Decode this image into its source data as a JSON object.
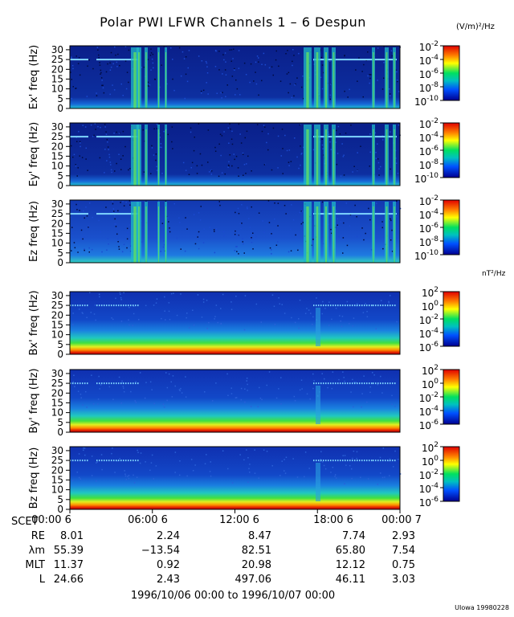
{
  "title": "Polar PWI LFWR Channels 1 – 6 Despun",
  "unit_e": "(V/m)²/Hz",
  "unit_b": "nT²/Hz",
  "chart_data": [
    {
      "type": "heatmap",
      "ylabel": "Ex' freq (Hz)",
      "yticks": [
        0,
        5,
        10,
        15,
        20,
        25,
        30
      ],
      "ylim": [
        0,
        32
      ],
      "colorbar_ticks": [
        "10-2",
        "10-4",
        "10-6",
        "10-8",
        "10-10"
      ],
      "colorbar_range": [
        -10,
        -2
      ]
    },
    {
      "type": "heatmap",
      "ylabel": "Ey' freq (Hz)",
      "yticks": [
        0,
        5,
        10,
        15,
        20,
        25,
        30
      ],
      "ylim": [
        0,
        32
      ],
      "colorbar_ticks": [
        "10-2",
        "10-4",
        "10-6",
        "10-8",
        "10-10"
      ],
      "colorbar_range": [
        -10,
        -2
      ]
    },
    {
      "type": "heatmap",
      "ylabel": "Ez freq (Hz)",
      "yticks": [
        0,
        5,
        10,
        15,
        20,
        25,
        30
      ],
      "ylim": [
        0,
        32
      ],
      "colorbar_ticks": [
        "10-2",
        "10-4",
        "10-6",
        "10-8",
        "10-10"
      ],
      "colorbar_range": [
        -10,
        -2
      ]
    },
    {
      "type": "heatmap",
      "ylabel": "Bx' freq (Hz)",
      "yticks": [
        0,
        5,
        10,
        15,
        20,
        25,
        30
      ],
      "ylim": [
        0,
        32
      ],
      "colorbar_ticks": [
        "102",
        "100",
        "10-2",
        "10-4",
        "10-6"
      ],
      "colorbar_range": [
        -6,
        2
      ]
    },
    {
      "type": "heatmap",
      "ylabel": "By' freq (Hz)",
      "yticks": [
        0,
        5,
        10,
        15,
        20,
        25,
        30
      ],
      "ylim": [
        0,
        32
      ],
      "colorbar_ticks": [
        "102",
        "100",
        "10-2",
        "10-4",
        "10-6"
      ],
      "colorbar_range": [
        -6,
        2
      ]
    },
    {
      "type": "heatmap",
      "ylabel": "Bz freq (Hz)",
      "yticks": [
        0,
        5,
        10,
        15,
        20,
        25,
        30
      ],
      "ylim": [
        0,
        32
      ],
      "colorbar_ticks": [
        "102",
        "100",
        "10-2",
        "10-4",
        "10-6"
      ],
      "colorbar_range": [
        -6,
        2
      ]
    }
  ],
  "x_axis": {
    "ticks": [
      "00:00 6",
      "06:00 6",
      "12:00 6",
      "18:00 6",
      "00:00 7"
    ],
    "rows": [
      {
        "label": "SCET",
        "values": []
      },
      {
        "label": "RE",
        "values": [
          "8.01",
          "2.24",
          "8.47",
          "7.74",
          "2.93"
        ]
      },
      {
        "label": "λm",
        "values": [
          "55.39",
          "−13.54",
          "82.51",
          "65.80",
          "7.54"
        ]
      },
      {
        "label": "MLT",
        "values": [
          "11.37",
          "0.92",
          "20.98",
          "12.12",
          "0.75"
        ]
      },
      {
        "label": "L",
        "values": [
          "24.66",
          "2.43",
          "497.06",
          "46.11",
          "3.03"
        ]
      }
    ]
  },
  "footer": "1996/10/06 00:00 to 1996/10/07 00:00",
  "stamp": "UIowa 19980228"
}
